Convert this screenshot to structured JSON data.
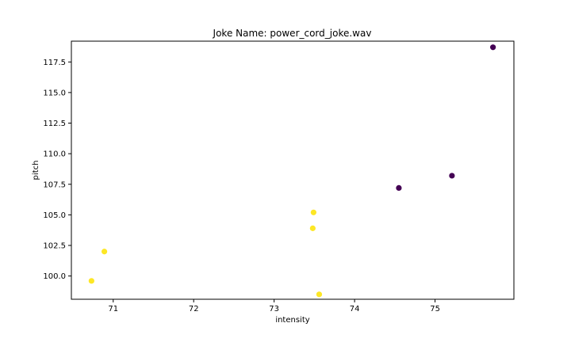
{
  "chart_data": {
    "type": "scatter",
    "title": "Joke Name: power_cord_joke.wav",
    "xlabel": "intensity",
    "ylabel": "pitch",
    "xlim": [
      70.48,
      75.98
    ],
    "ylim": [
      98.1,
      119.2
    ],
    "xticks": [
      71,
      72,
      73,
      74,
      75
    ],
    "xtick_labels": [
      "71",
      "72",
      "73",
      "74",
      "75"
    ],
    "yticks": [
      100.0,
      102.5,
      105.0,
      107.5,
      110.0,
      112.5,
      115.0,
      117.5
    ],
    "ytick_labels": [
      "100.0",
      "102.5",
      "105.0",
      "107.5",
      "110.0",
      "112.5",
      "115.0",
      "117.5"
    ],
    "grid": false,
    "colors": {
      "class_0": "#440154",
      "class_1": "#fde725"
    },
    "points": [
      {
        "x": 75.72,
        "y": 118.7,
        "class": 0
      },
      {
        "x": 75.21,
        "y": 108.2,
        "class": 0
      },
      {
        "x": 74.55,
        "y": 107.2,
        "class": 0
      },
      {
        "x": 73.49,
        "y": 105.2,
        "class": 1
      },
      {
        "x": 73.48,
        "y": 103.9,
        "class": 1
      },
      {
        "x": 73.56,
        "y": 98.5,
        "class": 1
      },
      {
        "x": 70.89,
        "y": 102.0,
        "class": 1
      },
      {
        "x": 70.73,
        "y": 99.6,
        "class": 1
      }
    ]
  }
}
